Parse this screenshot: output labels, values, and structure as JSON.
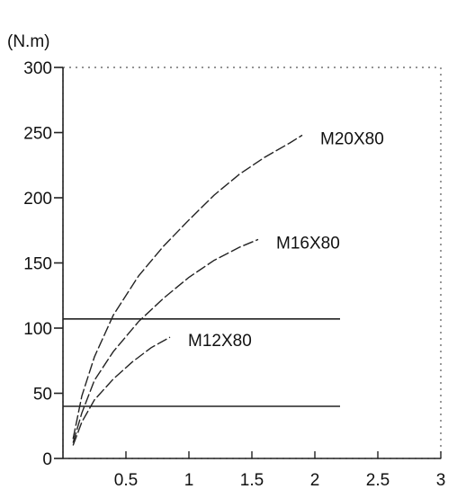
{
  "chart_data": {
    "type": "line",
    "ylabel": "(N.m)",
    "xlabel": "",
    "xlim": [
      0,
      3
    ],
    "ylim": [
      0,
      300
    ],
    "x_ticks": [
      "0.5",
      "1",
      "1.5",
      "2",
      "2.5",
      "3"
    ],
    "y_ticks": [
      "0",
      "50",
      "100",
      "150",
      "200",
      "250",
      "300"
    ],
    "grid": false,
    "series": [
      {
        "name": "M20X80",
        "x": [
          0.08,
          0.15,
          0.25,
          0.4,
          0.6,
          0.8,
          1.0,
          1.2,
          1.4,
          1.6,
          1.8,
          1.9
        ],
        "y": [
          15,
          48,
          78,
          110,
          140,
          163,
          183,
          202,
          218,
          231,
          242,
          248
        ]
      },
      {
        "name": "M16X80",
        "x": [
          0.08,
          0.15,
          0.25,
          0.4,
          0.6,
          0.8,
          1.0,
          1.2,
          1.4,
          1.55
        ],
        "y": [
          12,
          35,
          60,
          82,
          105,
          123,
          139,
          152,
          162,
          168
        ]
      },
      {
        "name": "M12X80",
        "x": [
          0.08,
          0.15,
          0.25,
          0.4,
          0.55,
          0.7,
          0.85
        ],
        "y": [
          10,
          28,
          45,
          61,
          74,
          85,
          93
        ]
      }
    ],
    "reference_lines": [
      {
        "y": 107,
        "x_range": [
          0,
          2.2
        ]
      },
      {
        "y": 40,
        "x_range": [
          0,
          2.2
        ]
      }
    ]
  }
}
